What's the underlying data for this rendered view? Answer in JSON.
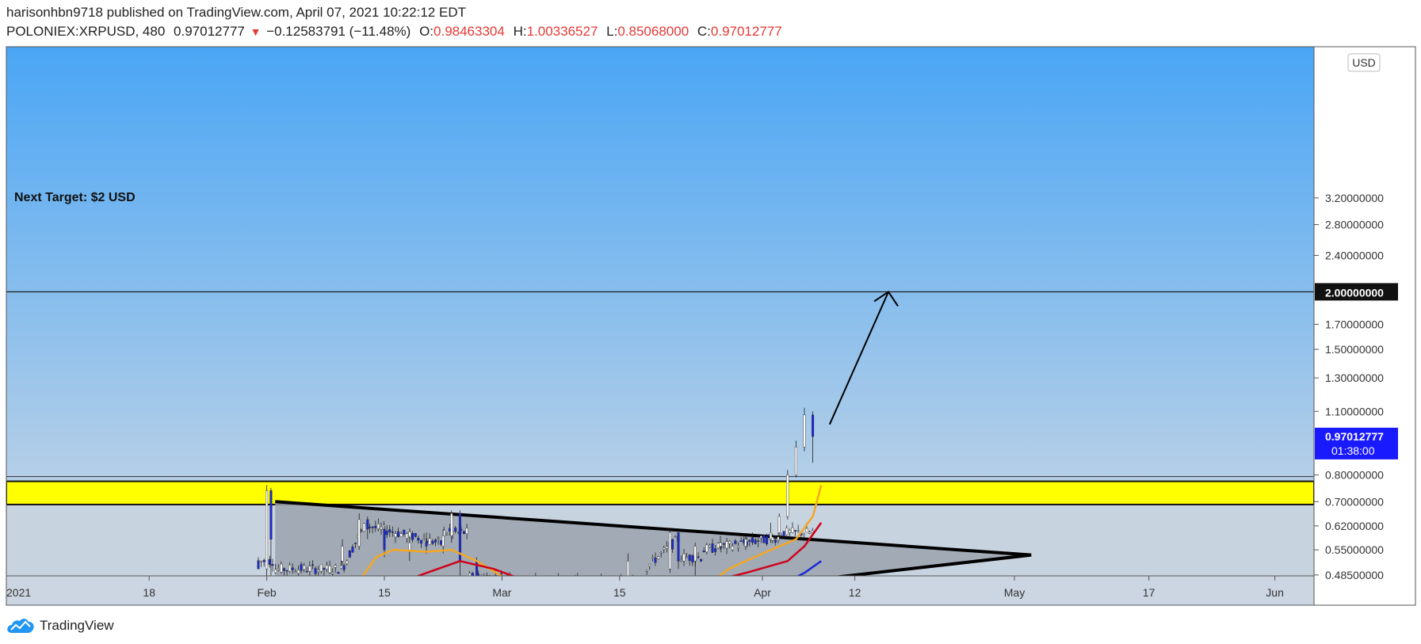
{
  "header": {
    "published_line": "harisonhbn9718 published on TradingView.com, April 07, 2021 10:22:12 EDT",
    "symbol": "POLONIEX:XRPUSD, 480",
    "last_price": "0.97012777",
    "change_arrow": "▼",
    "change": "−0.12583791 (−11.48%)",
    "open_label": "O:",
    "open": "0.98463304",
    "high_label": "H:",
    "high": "1.00336527",
    "low_label": "L:",
    "low": "0.85068000",
    "close_label": "C:",
    "close": "0.97012777"
  },
  "footer": {
    "brand": "TradingView"
  },
  "colors": {
    "bg_top": "#4aa6f5",
    "bg_bottom": "#cdd8e4",
    "resistance_zone": "#ffff00",
    "triangle_fill": "#9aa2ad",
    "ema_fast": "#f5a623",
    "ema_mid": "#d0021b",
    "ema_slow": "#1a2bd6",
    "up_candle": "#ffffff",
    "down_candle": "#1a2bd6",
    "price_badge": "#1a1aff"
  },
  "chart_data": {
    "type": "candlestick",
    "scale": "log",
    "currency_badge": "USD",
    "y_ticks": [
      "3.20000000",
      "2.80000000",
      "2.40000000",
      "2.00000000",
      "1.70000000",
      "1.50000000",
      "1.30000000",
      "1.10000000",
      "0.80000000",
      "0.70000000",
      "0.62000000",
      "0.55000000",
      "0.48500000"
    ],
    "y_tick_values": [
      3.2,
      2.8,
      2.4,
      2.0,
      1.7,
      1.5,
      1.3,
      1.1,
      0.8,
      0.7,
      0.62,
      0.55,
      0.485
    ],
    "x_ticks": [
      "2021",
      "18",
      "Feb",
      "15",
      "Mar",
      "15",
      "Apr",
      "12",
      "May",
      "17",
      "Jun"
    ],
    "x_tick_days": [
      0,
      17,
      31,
      45,
      59,
      73,
      90,
      101,
      120,
      136,
      151
    ],
    "highlight_price": {
      "label": "2.00000000",
      "value": 2.0
    },
    "current_price": {
      "label": "0.97012777",
      "countdown": "01:38:00",
      "value": 0.97012777
    },
    "annotation": {
      "text": "Next Target: $2 USD"
    },
    "resistance_zone": {
      "low": 0.69,
      "high": 0.775
    },
    "triangle": {
      "upper": [
        [
          32,
          0.7
        ],
        [
          87,
          0.57
        ]
      ],
      "lower": [
        [
          90,
          0.46
        ],
        [
          122,
          0.536
        ]
      ],
      "apex_day": 122
    },
    "target_arrow": {
      "from": [
        98,
        1.03
      ],
      "to": [
        105,
        2.0
      ]
    },
    "candles_shown": [
      [
        30,
        0.52,
        0.5,
        0.53,
        0.5
      ],
      [
        31,
        0.5,
        0.74,
        0.76,
        0.46
      ],
      [
        31.5,
        0.74,
        0.58,
        0.75,
        0.46
      ],
      [
        40,
        0.52,
        0.56,
        0.58,
        0.51
      ],
      [
        42,
        0.56,
        0.64,
        0.66,
        0.55
      ],
      [
        43,
        0.64,
        0.61,
        0.65,
        0.58
      ],
      [
        45,
        0.61,
        0.55,
        0.62,
        0.53
      ],
      [
        48,
        0.55,
        0.57,
        0.59,
        0.52
      ],
      [
        50,
        0.57,
        0.56,
        0.6,
        0.54
      ],
      [
        52,
        0.56,
        0.59,
        0.61,
        0.54
      ],
      [
        53,
        0.59,
        0.66,
        0.67,
        0.57
      ],
      [
        54,
        0.66,
        0.52,
        0.67,
        0.48
      ],
      [
        56,
        0.52,
        0.47,
        0.53,
        0.46
      ],
      [
        63,
        0.47,
        0.48,
        0.49,
        0.46
      ],
      [
        68,
        0.48,
        0.48,
        0.49,
        0.47
      ],
      [
        74,
        0.47,
        0.52,
        0.54,
        0.46
      ],
      [
        79,
        0.5,
        0.6,
        0.61,
        0.49
      ],
      [
        80,
        0.6,
        0.52,
        0.6,
        0.5
      ],
      [
        82,
        0.52,
        0.56,
        0.57,
        0.46
      ],
      [
        85,
        0.56,
        0.57,
        0.59,
        0.55
      ],
      [
        88,
        0.56,
        0.58,
        0.59,
        0.55
      ],
      [
        91,
        0.58,
        0.6,
        0.63,
        0.57
      ],
      [
        92,
        0.6,
        0.65,
        0.66,
        0.58
      ],
      [
        93,
        0.65,
        0.8,
        0.82,
        0.64
      ],
      [
        94,
        0.8,
        0.92,
        0.95,
        0.79
      ],
      [
        95,
        0.92,
        1.08,
        1.12,
        0.9
      ],
      [
        96,
        1.08,
        0.97,
        1.1,
        0.85
      ]
    ]
  }
}
